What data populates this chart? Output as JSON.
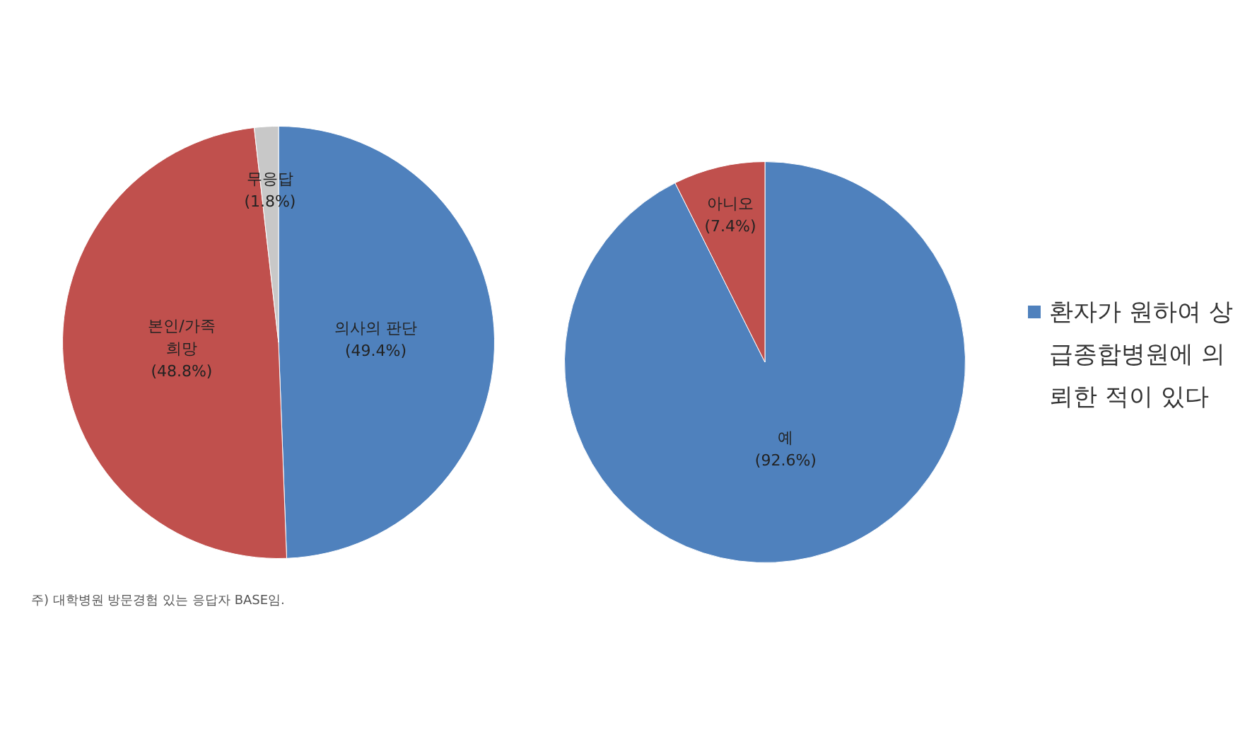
{
  "chart_data": [
    {
      "type": "pie",
      "categories": [
        "의사의 판단",
        "본인/가족 희망",
        "무응답"
      ],
      "values": [
        49.4,
        48.8,
        1.8
      ],
      "colors": [
        "#4f81bd",
        "#c0504d",
        "#c8c8c8"
      ],
      "value_labels": [
        "(49.4%)",
        "(48.8%)",
        "(1.8%)"
      ],
      "annotations": [
        "주) 대학병원 방문경험 있는 응답자 BASE임."
      ]
    },
    {
      "type": "pie",
      "categories": [
        "예",
        "아니오"
      ],
      "colors": [
        "#4f81bd",
        "#c0504d"
      ],
      "value_labels": [
        "(92.6%)",
        "(7.4%)"
      ],
      "legend": "right",
      "series": [
        {
          "name": "환자가 원하여 상급종합병원에 의뢰한 적이 있다",
          "color": "#4f81bd",
          "values": [
            92.6,
            7.4
          ]
        }
      ]
    }
  ]
}
